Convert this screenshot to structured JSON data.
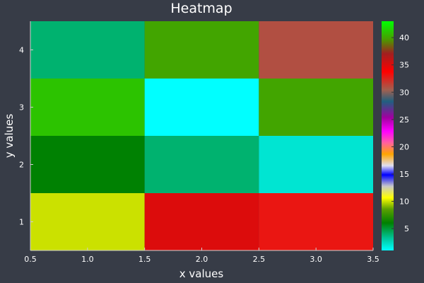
{
  "chart_data": {
    "type": "heatmap",
    "title": "Heatmap",
    "xlabel": "x values",
    "ylabel": "y values",
    "x": [
      1.0,
      2.0,
      3.0
    ],
    "y": [
      1,
      2,
      3,
      4
    ],
    "xlim": [
      0.5,
      3.5
    ],
    "ylim": [
      0.5,
      4.5
    ],
    "x_ticks": [
      "0.5",
      "1.0",
      "1.5",
      "2.0",
      "2.5",
      "3.0",
      "3.5"
    ],
    "y_ticks": [
      "1",
      "2",
      "3",
      "4"
    ],
    "values": [
      [
        10,
        35,
        33
      ],
      [
        6,
        4,
        2
      ],
      [
        41,
        1,
        40
      ],
      [
        4,
        40,
        31
      ]
    ],
    "colorbar": {
      "range": [
        1,
        43
      ],
      "ticks": [
        "5",
        "10",
        "15",
        "20",
        "25",
        "30",
        "35",
        "40"
      ],
      "colorscale": [
        [
          0.0,
          "#00ffff"
        ],
        [
          0.05,
          "#00c8a0"
        ],
        [
          0.12,
          "#008000"
        ],
        [
          0.18,
          "#5aa000"
        ],
        [
          0.23,
          "#ffff00"
        ],
        [
          0.28,
          "#c8c8c8"
        ],
        [
          0.33,
          "#0000ff"
        ],
        [
          0.37,
          "#e0e0f0"
        ],
        [
          0.42,
          "#ffa500"
        ],
        [
          0.47,
          "#ff60a0"
        ],
        [
          0.52,
          "#ff00ff"
        ],
        [
          0.58,
          "#a000a0"
        ],
        [
          0.65,
          "#206080"
        ],
        [
          0.7,
          "#a06050"
        ],
        [
          0.78,
          "#ff0000"
        ],
        [
          0.86,
          "#a02020"
        ],
        [
          0.92,
          "#4a9a00"
        ],
        [
          1.0,
          "#00ff00"
        ]
      ]
    },
    "grid": false
  }
}
